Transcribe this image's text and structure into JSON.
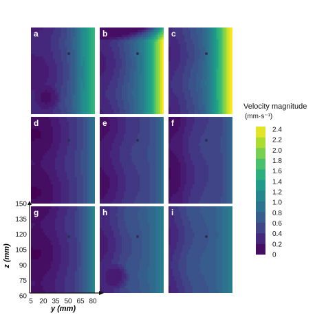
{
  "chart_data": {
    "type": "heatmap",
    "panels": [
      {
        "label": "a",
        "profile": [
          0.25,
          0.25,
          0.3,
          0.4,
          0.55,
          0.8,
          1.2,
          1.6
        ],
        "left": 0.15,
        "bottom_blob": true,
        "top_band": 0.0
      },
      {
        "label": "b",
        "profile": [
          0.3,
          0.35,
          0.45,
          0.6,
          0.8,
          1.1,
          1.6,
          2.4
        ],
        "left": 0.25,
        "bottom_blob": false,
        "top_band": 0.3
      },
      {
        "label": "c",
        "profile": [
          0.35,
          0.4,
          0.5,
          0.6,
          0.8,
          1.2,
          1.8,
          2.5
        ],
        "left": 0.35,
        "bottom_blob": false,
        "top_band": 0.0
      },
      {
        "label": "d",
        "profile": [
          0.1,
          0.1,
          0.15,
          0.25,
          0.35,
          0.45,
          0.6,
          0.9
        ],
        "left": 0.1,
        "bottom_blob": false,
        "top_band": 0.0
      },
      {
        "label": "e",
        "profile": [
          0.15,
          0.2,
          0.3,
          0.4,
          0.45,
          0.5,
          0.6,
          0.85
        ],
        "left": 0.1,
        "bottom_blob": false,
        "top_band": 0.0
      },
      {
        "label": "f",
        "profile": [
          0.1,
          0.15,
          0.3,
          0.4,
          0.45,
          0.5,
          0.55,
          0.8
        ],
        "left": 0.1,
        "bottom_blob": false,
        "top_band": 0.0
      },
      {
        "label": "g",
        "profile": [
          0.1,
          0.1,
          0.15,
          0.25,
          0.35,
          0.45,
          0.7,
          1.1
        ],
        "left": 0.1,
        "bottom_blob": false,
        "top_band": 0.0
      },
      {
        "label": "h",
        "profile": [
          0.3,
          0.35,
          0.45,
          0.55,
          0.6,
          0.7,
          0.8,
          1.0
        ],
        "left": 0.4,
        "bottom_blob": true,
        "top_band": 0.0
      },
      {
        "label": "i",
        "profile": [
          0.35,
          0.45,
          0.55,
          0.6,
          0.65,
          0.7,
          0.85,
          1.0
        ],
        "left": 0.4,
        "bottom_blob": false,
        "top_band": 0.0
      }
    ],
    "xlabel": "y (mm)",
    "ylabel": "z (mm)",
    "x_ticks": [
      "5",
      "20",
      "35",
      "50",
      "65",
      "80"
    ],
    "y_ticks": [
      "150",
      "135",
      "120",
      "105",
      "90",
      "75",
      "60"
    ],
    "xlim": [
      5,
      80
    ],
    "ylim": [
      60,
      150
    ],
    "colorbar": {
      "title": "Velocity magnitude",
      "units": "(mm·s⁻¹)",
      "ticks": [
        "2.4",
        "2.2",
        "2.0",
        "1.8",
        "1.6",
        "1.4",
        "1.2",
        "1.0",
        "0.8",
        "0.6",
        "0.4",
        "0.2",
        "0"
      ],
      "min": 0,
      "max": 2.4
    },
    "colormap": [
      "#440154",
      "#46237a",
      "#3e4a89",
      "#31688e",
      "#26828e",
      "#1f9e89",
      "#35b779",
      "#6ece58",
      "#b5de2b",
      "#fde725"
    ]
  }
}
